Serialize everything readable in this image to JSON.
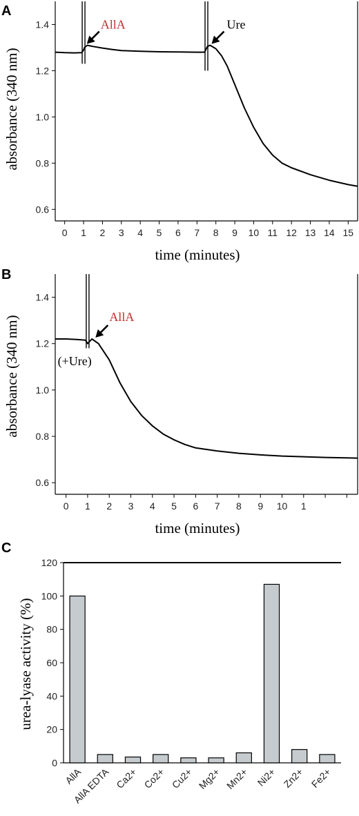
{
  "chart_data": [
    {
      "panel": "A",
      "type": "line",
      "xlabel": "time (minutes)",
      "ylabel": "absorbance (340 nm)",
      "xlim": [
        -0.5,
        15.5
      ],
      "ylim": [
        0.55,
        1.5
      ],
      "xticks": [
        "0",
        "1",
        "2",
        "3",
        "4",
        "5",
        "6",
        "7",
        "8",
        "9",
        "10",
        "11",
        "12",
        "13",
        "14",
        "15"
      ],
      "yticks": [
        "0.6",
        "0.8",
        "1.0",
        "1.2",
        "1.4"
      ],
      "grid": false,
      "series": [
        {
          "color": "#000000",
          "x": [
            -0.5,
            0.0,
            0.5,
            0.9,
            1.0,
            1.05,
            1.2,
            1.5,
            2.0,
            2.5,
            3.0,
            4.0,
            5.0,
            6.0,
            7.0,
            7.4,
            7.55,
            7.7,
            8.0,
            8.3,
            8.6,
            9.0,
            9.5,
            10.0,
            10.5,
            11.0,
            11.5,
            12.0,
            13.0,
            14.0,
            15.0,
            15.5
          ],
          "y": [
            1.28,
            1.278,
            1.277,
            1.278,
            1.29,
            1.3,
            1.31,
            1.305,
            1.298,
            1.292,
            1.287,
            1.284,
            1.282,
            1.281,
            1.28,
            1.28,
            1.305,
            1.31,
            1.295,
            1.265,
            1.22,
            1.14,
            1.04,
            0.955,
            0.885,
            0.835,
            0.8,
            0.78,
            0.75,
            0.726,
            0.707,
            0.7
          ]
        }
      ],
      "spikes": [
        {
          "x": 1.0,
          "y_top": 1.5,
          "y_bottom": 1.23
        },
        {
          "x": 7.5,
          "y_top": 1.5,
          "y_bottom": 1.2
        }
      ],
      "annotations": [
        {
          "text": "AllA",
          "color": "#c0302f",
          "x": 1.1,
          "y": 1.31
        },
        {
          "text": "Ure",
          "color": "#000000",
          "x": 7.7,
          "y": 1.31
        }
      ]
    },
    {
      "panel": "B",
      "type": "line",
      "xlabel": "time (minutes)",
      "ylabel": "absorbance (340 nm)",
      "xlim": [
        -0.5,
        13.5
      ],
      "ylim": [
        0.55,
        1.5
      ],
      "xticks": [
        "0",
        "1",
        "2",
        "3",
        "4",
        "5",
        "6",
        "7",
        "8",
        "9",
        "10",
        "1",
        "",
        ""
      ],
      "yticks": [
        "0.6",
        "0.8",
        "1.0",
        "1.2",
        "1.4"
      ],
      "grid": false,
      "series": [
        {
          "color": "#000000",
          "x": [
            -0.5,
            0.0,
            0.5,
            0.9,
            1.0,
            1.2,
            1.5,
            2.0,
            2.5,
            3.0,
            3.5,
            4.0,
            4.5,
            5.0,
            5.5,
            6.0,
            7.0,
            8.0,
            9.0,
            10.0,
            11.0,
            12.0,
            13.0,
            13.5
          ],
          "y": [
            1.22,
            1.22,
            1.218,
            1.215,
            1.2,
            1.22,
            1.2,
            1.13,
            1.03,
            0.95,
            0.89,
            0.845,
            0.81,
            0.785,
            0.765,
            0.75,
            0.737,
            0.727,
            0.72,
            0.715,
            0.712,
            0.709,
            0.707,
            0.706
          ]
        }
      ],
      "spikes": [
        {
          "x": 1.0,
          "y_top": 1.5,
          "y_bottom": 1.18
        }
      ],
      "annotations": [
        {
          "text": "AllA",
          "color": "#c0302f",
          "x": 1.3,
          "y": 1.22
        },
        {
          "text": "(+Ure)",
          "color": "#000000",
          "x": 0.0,
          "y": 1.13
        }
      ]
    },
    {
      "panel": "C",
      "type": "bar",
      "ylabel": "urea-lyase activity (%)",
      "ylim": [
        0,
        120
      ],
      "yticks": [
        "0",
        "20",
        "40",
        "60",
        "80",
        "100",
        "120"
      ],
      "grid": false,
      "bar_color": "#c5cbcf",
      "categories": [
        "AllA",
        "AllA EDTA",
        "Ca2+",
        "Co2+",
        "Cu2+",
        "Mg2+",
        "Mn2+",
        "Ni2+",
        "Zn2+",
        "Fe2+"
      ],
      "values": [
        100,
        5,
        3.5,
        5,
        3,
        3,
        6,
        107,
        8,
        5
      ]
    }
  ]
}
